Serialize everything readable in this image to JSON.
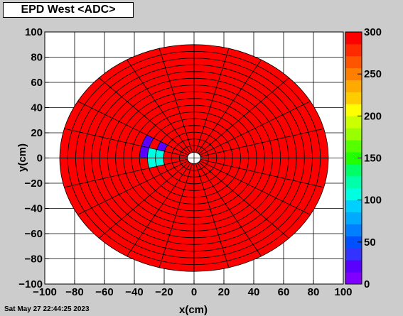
{
  "title": "EPD West <ADC>",
  "timestamp": "Sat May 27 22:44:25 2023",
  "chart_data": {
    "type": "heatmap",
    "title": "EPD West <ADC>",
    "xlabel": "x(cm)",
    "ylabel": "y(cm)",
    "xlim": [
      -100,
      100
    ],
    "ylim": [
      -100,
      100
    ],
    "x_ticks": [
      "−100",
      "−80",
      "−60",
      "−40",
      "−20",
      "0",
      "20",
      "40",
      "60",
      "80",
      "100"
    ],
    "y_ticks": [
      "−100",
      "−80",
      "−60",
      "−40",
      "−20",
      "0",
      "20",
      "40",
      "60",
      "80",
      "100"
    ],
    "z_range": [
      0,
      300
    ],
    "z_ticks": [
      "0",
      "50",
      "100",
      "150",
      "200",
      "250",
      "300"
    ],
    "grid": true,
    "detector": {
      "inner_radius_cm": 4.5,
      "outer_radius_cm": 90,
      "rings": 16,
      "sectors": 24,
      "default_value": 300,
      "low_tiles": [
        {
          "ring": 3,
          "sector": 11,
          "value": 100
        },
        {
          "ring": 3,
          "sector": 12,
          "value": 100
        },
        {
          "ring": 4,
          "sector": 11,
          "value": 100
        },
        {
          "ring": 4,
          "sector": 12,
          "value": 100
        },
        {
          "ring": 5,
          "sector": 10,
          "value": 20
        },
        {
          "ring": 5,
          "sector": 11,
          "value": 20
        },
        {
          "ring": 3,
          "sector": 10,
          "value": 20
        }
      ]
    },
    "palette": [
      "#7f00ff",
      "#5a00ff",
      "#3333ff",
      "#0050ff",
      "#0080ff",
      "#00aaff",
      "#00d0ff",
      "#00ffe0",
      "#00ffaa",
      "#00ff66",
      "#22ff00",
      "#55ff00",
      "#99ff00",
      "#ccff00",
      "#ffff00",
      "#ffcc00",
      "#ffaa00",
      "#ff8000",
      "#ff5500",
      "#ff2a00",
      "#ff0000"
    ]
  }
}
